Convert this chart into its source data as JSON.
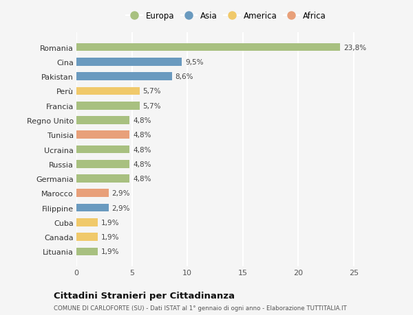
{
  "countries": [
    "Romania",
    "Cina",
    "Pakistan",
    "Perù",
    "Francia",
    "Regno Unito",
    "Tunisia",
    "Ucraina",
    "Russia",
    "Germania",
    "Marocco",
    "Filippine",
    "Cuba",
    "Canada",
    "Lituania"
  ],
  "values": [
    23.8,
    9.5,
    8.6,
    5.7,
    5.7,
    4.8,
    4.8,
    4.8,
    4.8,
    4.8,
    2.9,
    2.9,
    1.9,
    1.9,
    1.9
  ],
  "labels": [
    "23,8%",
    "9,5%",
    "8,6%",
    "5,7%",
    "5,7%",
    "4,8%",
    "4,8%",
    "4,8%",
    "4,8%",
    "4,8%",
    "2,9%",
    "2,9%",
    "1,9%",
    "1,9%",
    "1,9%"
  ],
  "continents": [
    "Europa",
    "Asia",
    "Asia",
    "America",
    "Europa",
    "Europa",
    "Africa",
    "Europa",
    "Europa",
    "Europa",
    "Africa",
    "Asia",
    "America",
    "America",
    "Europa"
  ],
  "continent_colors": {
    "Europa": "#a8c080",
    "Asia": "#6a9abf",
    "America": "#f0c96a",
    "Africa": "#e8a07a"
  },
  "legend_order": [
    "Europa",
    "Asia",
    "America",
    "Africa"
  ],
  "title": "Cittadini Stranieri per Cittadinanza",
  "subtitle": "COMUNE DI CARLOFORTE (SU) - Dati ISTAT al 1° gennaio di ogni anno - Elaborazione TUTTITALIA.IT",
  "xlim": [
    0,
    27
  ],
  "xticks": [
    0,
    5,
    10,
    15,
    20,
    25
  ],
  "background_color": "#f5f5f5",
  "grid_color": "#ffffff",
  "bar_height": 0.55
}
